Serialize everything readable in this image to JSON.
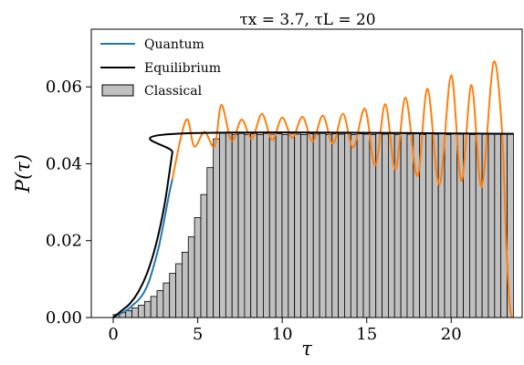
{
  "chart_data": {
    "type": "bar",
    "title": "τx = 3.7, τL = 20",
    "xlabel": "τ",
    "ylabel": "P(τ)",
    "xlim": [
      -1.3,
      24.2
    ],
    "ylim": [
      0,
      0.075
    ],
    "xticks": [
      "0",
      "5",
      "10",
      "15",
      "20"
    ],
    "yticks": [
      "0.00",
      "0.02",
      "0.04",
      "0.06"
    ],
    "grid": false,
    "legend_position": "top-left",
    "legend": [
      "Quantum",
      "Equilibrium",
      "Classical"
    ],
    "colors": {
      "quantum": "#1f77b4",
      "equilibrium": "#000000",
      "classical_fill": "#c0c0c0",
      "oscillation": "#ff7f0e"
    },
    "histogram": {
      "name": "Classical",
      "bin_width": 0.37,
      "bin_start": 0,
      "heights": [
        0.0008,
        0.0013,
        0.0018,
        0.0025,
        0.0032,
        0.0042,
        0.0055,
        0.007,
        0.009,
        0.0115,
        0.014,
        0.017,
        0.021,
        0.026,
        0.032,
        0.039,
        0.0465,
        0.048,
        0.0482,
        0.0476,
        0.0479,
        0.0476,
        0.0478,
        0.0476,
        0.0479,
        0.0477,
        0.0478,
        0.0476,
        0.0479,
        0.0477,
        0.0476,
        0.0478,
        0.0477,
        0.0479,
        0.0476,
        0.0478,
        0.0477,
        0.0479,
        0.0476,
        0.0478,
        0.0477,
        0.0476,
        0.0479,
        0.0477,
        0.0478,
        0.0476,
        0.0479,
        0.0477,
        0.0478,
        0.0476,
        0.0479,
        0.0477,
        0.0478,
        0.0476,
        0.0479,
        0.0477,
        0.0478,
        0.0476,
        0.0479,
        0.0477,
        0.0478,
        0.0477,
        0.0478,
        0.0478
      ]
    },
    "equilibrium": {
      "name": "Equilibrium",
      "x": [
        0,
        0.5,
        1.0,
        1.5,
        2.0,
        2.5,
        3.0,
        3.3,
        3.5,
        3.7,
        23.7
      ],
      "y": [
        0.0,
        0.0018,
        0.0037,
        0.0068,
        0.0115,
        0.0185,
        0.0285,
        0.037,
        0.043,
        0.0478,
        0.0478
      ]
    },
    "quantum": {
      "name": "Quantum",
      "x": [
        0,
        0.3,
        0.6,
        0.9,
        1.2,
        1.5,
        1.8,
        2.1,
        2.4,
        2.7,
        3.0,
        3.3,
        3.5
      ],
      "y": [
        0.0,
        0.0008,
        0.0014,
        0.0022,
        0.0034,
        0.0046,
        0.0064,
        0.0092,
        0.0135,
        0.0185,
        0.025,
        0.032,
        0.036
      ]
    },
    "oscillation": {
      "x": [
        3.5,
        4.0,
        4.4,
        4.8,
        5.4,
        6.0,
        6.4,
        7.0,
        7.6,
        8.2,
        8.8,
        9.4,
        10.0,
        10.6,
        11.2,
        11.8,
        12.4,
        13.0,
        13.6,
        14.2,
        14.9,
        15.5,
        16.1,
        16.7,
        17.3,
        18.0,
        18.6,
        19.3,
        20.0,
        20.6,
        21.2,
        21.8,
        22.5,
        23.0,
        23.25,
        23.45,
        23.6
      ],
      "y": [
        0.036,
        0.0468,
        0.0515,
        0.0445,
        0.0483,
        0.0445,
        0.0553,
        0.046,
        0.0515,
        0.0465,
        0.053,
        0.0462,
        0.052,
        0.0468,
        0.0522,
        0.0458,
        0.0525,
        0.0452,
        0.053,
        0.0442,
        0.0543,
        0.0395,
        0.0555,
        0.0385,
        0.0572,
        0.0368,
        0.0595,
        0.0345,
        0.063,
        0.0355,
        0.0605,
        0.034,
        0.0663,
        0.049,
        0.02,
        0.004,
        0.0
      ]
    }
  }
}
